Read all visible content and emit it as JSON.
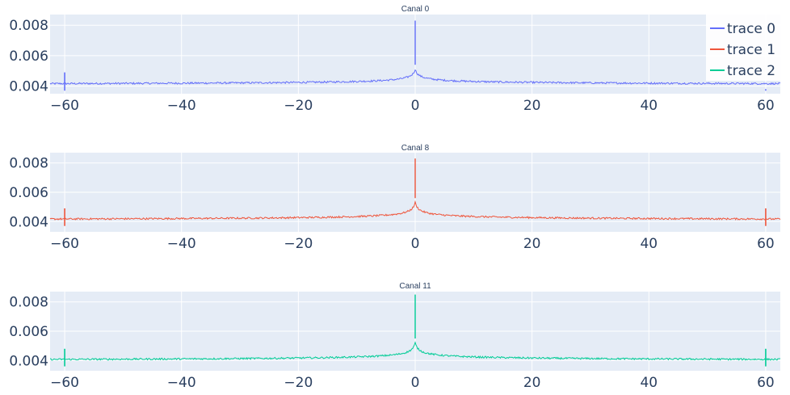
{
  "chart_data": [
    {
      "type": "line",
      "title": "Canal 0",
      "series_index": 0,
      "xlim": [
        -62.5,
        62.5
      ],
      "ylim": [
        0.0035,
        0.0087
      ],
      "x_ticks": [
        -60,
        -40,
        -20,
        0,
        20,
        40,
        60
      ],
      "x_tick_labels": [
        "−60",
        "−40",
        "−20",
        "0",
        "20",
        "40",
        "60"
      ],
      "y_ticks": [
        0.004,
        0.006,
        0.008
      ],
      "y_tick_labels": [
        "0.004",
        "0.006",
        "0.008"
      ],
      "shape": {
        "baseline": 0.0041,
        "near_center": 0.0051,
        "peak": 0.0083,
        "spike_neg60": 0.0049,
        "spike_pos60": 0.0038
      },
      "grid": true
    },
    {
      "type": "line",
      "title": "Canal 8",
      "series_index": 1,
      "xlim": [
        -62.5,
        62.5
      ],
      "ylim": [
        0.0033,
        0.0087
      ],
      "x_ticks": [
        -60,
        -40,
        -20,
        0,
        20,
        40,
        60
      ],
      "x_tick_labels": [
        "−60",
        "−40",
        "−20",
        "0",
        "20",
        "40",
        "60"
      ],
      "y_ticks": [
        0.004,
        0.006,
        0.008
      ],
      "y_tick_labels": [
        "0.004",
        "0.006",
        "0.008"
      ],
      "shape": {
        "baseline": 0.0041,
        "near_center": 0.0053,
        "peak": 0.0083,
        "spike_neg60": 0.0049,
        "spike_pos60": 0.0049
      },
      "grid": true
    },
    {
      "type": "line",
      "title": "Canal 11",
      "series_index": 2,
      "xlim": [
        -62.5,
        62.5
      ],
      "ylim": [
        0.0033,
        0.0087
      ],
      "x_ticks": [
        -60,
        -40,
        -20,
        0,
        20,
        40,
        60
      ],
      "x_tick_labels": [
        "−60",
        "−40",
        "−20",
        "0",
        "20",
        "40",
        "60"
      ],
      "y_ticks": [
        0.004,
        0.006,
        0.008
      ],
      "y_tick_labels": [
        "0.004",
        "0.006",
        "0.008"
      ],
      "shape": {
        "baseline": 0.004,
        "near_center": 0.0052,
        "peak": 0.0085,
        "spike_neg60": 0.0048,
        "spike_pos60": 0.0048
      },
      "grid": true
    }
  ],
  "legend": {
    "placement": "top-right",
    "items": [
      {
        "name": "trace 0",
        "color": "#636efa"
      },
      {
        "name": "trace 1",
        "color": "#ef553b"
      },
      {
        "name": "trace 2",
        "color": "#00cc96"
      }
    ]
  },
  "colors": {
    "plot_bg": "#e5ecf6",
    "grid": "#ffffff",
    "text": "#2a3f5f"
  }
}
